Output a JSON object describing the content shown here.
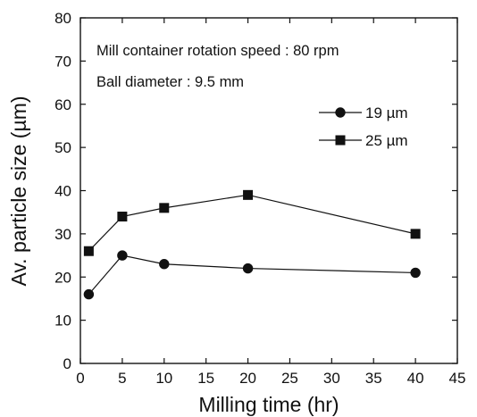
{
  "chart_data": {
    "type": "line",
    "title": "",
    "xlabel": "Milling time (hr)",
    "ylabel": "Av. particle size (µm)",
    "xlim": [
      0,
      45
    ],
    "ylim": [
      0,
      80
    ],
    "xticks": [
      0,
      5,
      10,
      15,
      20,
      25,
      30,
      35,
      40,
      45
    ],
    "xtick_labels": [
      "0",
      "5",
      "10",
      "15",
      "20",
      "25",
      "30",
      "35",
      "40",
      "45"
    ],
    "yticks": [
      0,
      10,
      20,
      30,
      40,
      50,
      60,
      70,
      80
    ],
    "ytick_labels": [
      "0",
      "10",
      "20",
      "30",
      "40",
      "50",
      "60",
      "70",
      "80"
    ],
    "grid": false,
    "legend_position": "right",
    "annotations": [
      "Mill container rotation speed : 80 rpm",
      "Ball diameter : 9.5 mm"
    ],
    "series": [
      {
        "name": "19 µm",
        "marker": "circle",
        "color": "#111111",
        "x": [
          1,
          5,
          10,
          20,
          40
        ],
        "y": [
          16,
          25,
          23,
          22,
          21
        ]
      },
      {
        "name": "25 µm",
        "marker": "square",
        "color": "#111111",
        "x": [
          1,
          5,
          10,
          20,
          40
        ],
        "y": [
          26,
          34,
          36,
          39,
          30
        ]
      }
    ]
  }
}
